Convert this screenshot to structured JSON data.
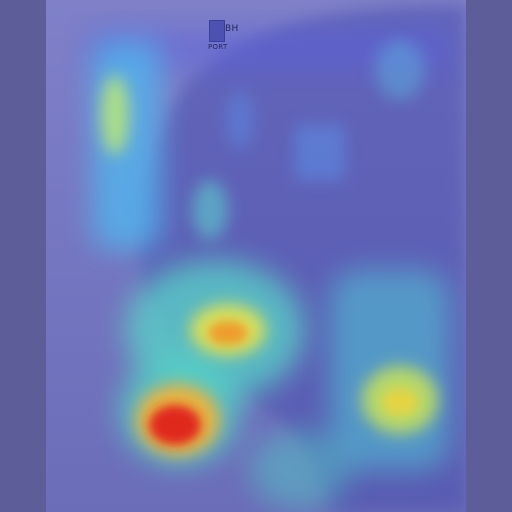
{
  "image": {
    "description_kind": "chest radiograph with heatmap overlay",
    "marker_label": "BH",
    "position_label": "PORT"
  },
  "colors": {
    "background": "#5d5d99",
    "film": "#7778c2",
    "heat_low": "#3b3fd6",
    "heat_mid": "#5fe0e0",
    "heat_high": "#ffe14a",
    "heat_peak": "#e0241c"
  }
}
